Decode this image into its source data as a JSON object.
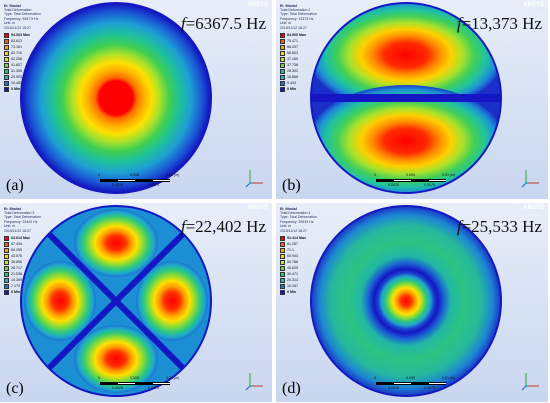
{
  "figure": {
    "panels": [
      {
        "label": "(a)",
        "freq_symbol": "f",
        "freq_value": "=6367.5 Hz",
        "brand": "ANSYS",
        "brand_version": "R18.2",
        "legend_lines": [
          "B: Modal",
          "Total Deformation",
          "Type: Total Deformation",
          "Frequency: 6367.5 Hz",
          "Unit: m",
          "2015/11/12 18:27"
        ],
        "scale_values": [
          "94.063 Max",
          "83.613",
          "73.161",
          "62.710",
          "52.258",
          "41.807",
          "31.355",
          "20.903",
          "10.452",
          "0 Min"
        ],
        "scalebar": {
          "top_labels": [
            "0",
            "0.005",
            "0.01 (m)"
          ],
          "bottom_labels": [
            "0.0025",
            "0.0075"
          ]
        }
      },
      {
        "label": "(b)",
        "freq_symbol": "f",
        "freq_value": "=13,373 Hz",
        "brand": "ANSYS",
        "brand_version": "R18.2",
        "legend_lines": [
          "B: Modal",
          "Total Deformation 2",
          "Type: Total Deformation",
          "Frequency: 13373 Hz",
          "Unit: m",
          "2015/11/12 18:27"
        ],
        "scale_values": [
          "84.905 Max",
          "75.471",
          "66.037",
          "56.603",
          "47.169",
          "37.736",
          "28.302",
          "18.868",
          "9.434",
          "0 Min"
        ],
        "scalebar": {
          "top_labels": [
            "0",
            "0.005",
            "0.01 (m)"
          ],
          "bottom_labels": [
            "0.0025",
            "0.0075"
          ]
        }
      },
      {
        "label": "(c)",
        "freq_symbol": "f",
        "freq_value": "=22,402 Hz",
        "brand": "ANSYS",
        "brand_version": "R18.2",
        "legend_lines": [
          "B: Modal",
          "Total Deformation 3",
          "Type: Total Deformation",
          "Frequency: 22402 Hz",
          "Unit: m",
          "2015/11/12 18:27"
        ],
        "scale_values": [
          "64.614 Max",
          "57.434",
          "50.255",
          "43.076",
          "35.896",
          "28.717",
          "21.538",
          "14.359",
          "7.179",
          "0 Min"
        ],
        "scalebar": {
          "top_labels": [
            "0",
            "0.005",
            "0.01 (m)"
          ],
          "bottom_labels": [
            "0.0025",
            "0.0075"
          ]
        }
      },
      {
        "label": "(d)",
        "freq_symbol": "f",
        "freq_value": "=25,533 Hz",
        "brand": "ANSYS",
        "brand_version": "R18.2",
        "legend_lines": [
          "B: Modal",
          "Total Deformation 4",
          "Type: Total Deformation",
          "Frequency: 25533 Hz",
          "Unit: m",
          "2015/11/12 18:27"
        ],
        "scale_values": [
          "91.414 Max",
          "81.257",
          "71.1",
          "60.943",
          "50.786",
          "40.629",
          "30.471",
          "20.314",
          "10.157",
          "0 Min"
        ],
        "scalebar": {
          "top_labels": [
            "0",
            "0.005",
            "0.01 (m)"
          ],
          "bottom_labels": [
            "0.0025",
            "0.0075"
          ]
        }
      }
    ]
  },
  "colors": {
    "contour_scale": [
      "#ff0000",
      "#ff5a00",
      "#ffa500",
      "#ffd400",
      "#c6e81e",
      "#6bd53a",
      "#21c87a",
      "#22b3c7",
      "#1c74d9",
      "#1416c4"
    ],
    "background_top": "#e8eef9",
    "background_bottom": "#c8d6ef"
  }
}
